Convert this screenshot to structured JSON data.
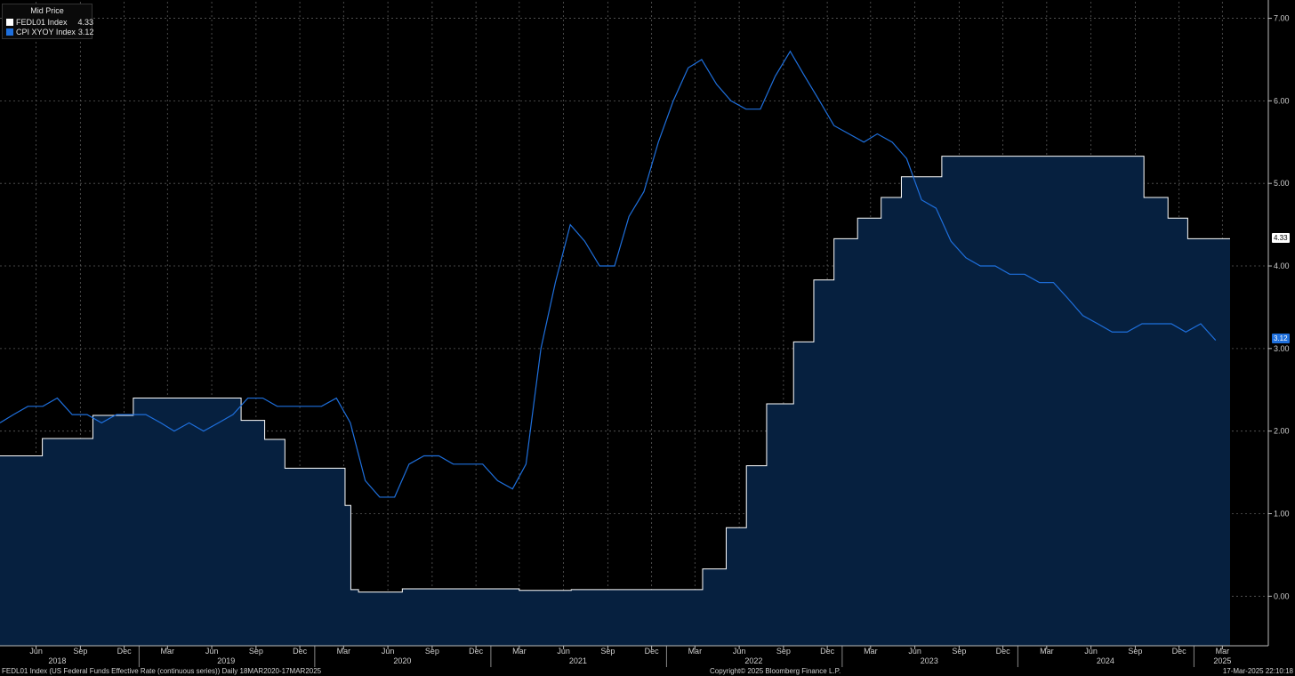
{
  "legend": {
    "title": "Mid Price",
    "items": [
      {
        "name": "FEDL01 Index",
        "value": "4.33",
        "color": "#ffffff"
      },
      {
        "name": "CPI XYOY Index",
        "value": "3.12",
        "color": "#1e6fdc"
      }
    ]
  },
  "value_tags": {
    "fedl01": {
      "text": "4.33",
      "value": 4.33
    },
    "cpi": {
      "text": "3.12",
      "value": 3.12
    }
  },
  "footer": {
    "left": "FEDL01 Index (US Federal Funds Effective Rate (continuous series))  Daily 18MAR2020-17MAR2025",
    "center": "Copyright© 2025 Bloomberg Finance L.P.",
    "right": "17-Mar-2025 22:10:18"
  },
  "chart_data": {
    "type": "line",
    "x_unit": "date",
    "xlim": [
      "2018-03-18",
      "2025-03-17"
    ],
    "ylim": [
      -0.6,
      7.2
    ],
    "y_ticks": [
      "0.00",
      "1.00",
      "2.00",
      "3.00",
      "4.00",
      "5.00",
      "6.00",
      "7.00"
    ],
    "x_month_ticks": [
      {
        "label": "Jun",
        "date": "2018-06-01"
      },
      {
        "label": "Sep",
        "date": "2018-09-01"
      },
      {
        "label": "Dec",
        "date": "2018-12-01"
      },
      {
        "label": "Mar",
        "date": "2019-03-01"
      },
      {
        "label": "Jun",
        "date": "2019-06-01"
      },
      {
        "label": "Sep",
        "date": "2019-09-01"
      },
      {
        "label": "Dec",
        "date": "2019-12-01"
      },
      {
        "label": "Mar",
        "date": "2020-03-01"
      },
      {
        "label": "Jun",
        "date": "2020-06-01"
      },
      {
        "label": "Sep",
        "date": "2020-09-01"
      },
      {
        "label": "Dec",
        "date": "2020-12-01"
      },
      {
        "label": "Mar",
        "date": "2021-03-01"
      },
      {
        "label": "Jun",
        "date": "2021-06-01"
      },
      {
        "label": "Sep",
        "date": "2021-09-01"
      },
      {
        "label": "Dec",
        "date": "2021-12-01"
      },
      {
        "label": "Mar",
        "date": "2022-03-01"
      },
      {
        "label": "Jun",
        "date": "2022-06-01"
      },
      {
        "label": "Sep",
        "date": "2022-09-01"
      },
      {
        "label": "Dec",
        "date": "2022-12-01"
      },
      {
        "label": "Mar",
        "date": "2023-03-01"
      },
      {
        "label": "Jun",
        "date": "2023-06-01"
      },
      {
        "label": "Sep",
        "date": "2023-09-01"
      },
      {
        "label": "Dec",
        "date": "2023-12-01"
      },
      {
        "label": "Mar",
        "date": "2024-03-01"
      },
      {
        "label": "Jun",
        "date": "2024-06-01"
      },
      {
        "label": "Sep",
        "date": "2024-09-01"
      },
      {
        "label": "Dec",
        "date": "2024-12-01"
      },
      {
        "label": "Mar",
        "date": "2025-03-01"
      }
    ],
    "x_year_labels": [
      {
        "label": "2018",
        "date": "2018-07-15"
      },
      {
        "label": "2019",
        "date": "2019-07-01"
      },
      {
        "label": "2020",
        "date": "2020-07-01"
      },
      {
        "label": "2021",
        "date": "2021-07-01"
      },
      {
        "label": "2022",
        "date": "2022-07-01"
      },
      {
        "label": "2023",
        "date": "2023-07-01"
      },
      {
        "label": "2024",
        "date": "2024-07-01"
      },
      {
        "label": "2025",
        "date": "2025-03-01"
      }
    ],
    "grid": true,
    "legend_position": "top-left",
    "series": [
      {
        "name": "FEDL01 Index",
        "style": "step-area",
        "line_color": "#ffffff",
        "fill_color": "#06203f",
        "points": [
          [
            "2018-03-18",
            1.7
          ],
          [
            "2018-06-14",
            1.91
          ],
          [
            "2018-09-27",
            2.19
          ],
          [
            "2018-12-20",
            2.4
          ],
          [
            "2019-08-01",
            2.13
          ],
          [
            "2019-09-19",
            1.9
          ],
          [
            "2019-10-31",
            1.55
          ],
          [
            "2020-03-04",
            1.1
          ],
          [
            "2020-03-16",
            0.08
          ],
          [
            "2020-04-01",
            0.05
          ],
          [
            "2020-07-01",
            0.09
          ],
          [
            "2021-03-01",
            0.07
          ],
          [
            "2021-06-17",
            0.08
          ],
          [
            "2022-03-17",
            0.33
          ],
          [
            "2022-05-05",
            0.83
          ],
          [
            "2022-06-16",
            1.58
          ],
          [
            "2022-07-28",
            2.33
          ],
          [
            "2022-09-22",
            3.08
          ],
          [
            "2022-11-03",
            3.83
          ],
          [
            "2022-12-15",
            4.33
          ],
          [
            "2023-02-02",
            4.58
          ],
          [
            "2023-03-23",
            4.83
          ],
          [
            "2023-05-04",
            5.08
          ],
          [
            "2023-07-27",
            5.33
          ],
          [
            "2024-09-19",
            4.83
          ],
          [
            "2024-11-08",
            4.58
          ],
          [
            "2024-12-19",
            4.33
          ],
          [
            "2025-03-17",
            4.33
          ]
        ]
      },
      {
        "name": "CPI XYOY Index",
        "style": "line",
        "line_color": "#1e6fdc",
        "points": [
          [
            "2018-03-18",
            2.1
          ],
          [
            "2018-04-15",
            2.2
          ],
          [
            "2018-05-15",
            2.3
          ],
          [
            "2018-06-15",
            2.3
          ],
          [
            "2018-07-15",
            2.4
          ],
          [
            "2018-08-15",
            2.2
          ],
          [
            "2018-09-15",
            2.2
          ],
          [
            "2018-10-15",
            2.1
          ],
          [
            "2018-11-15",
            2.2
          ],
          [
            "2018-12-15",
            2.2
          ],
          [
            "2019-01-15",
            2.2
          ],
          [
            "2019-02-15",
            2.1
          ],
          [
            "2019-03-15",
            2.0
          ],
          [
            "2019-04-15",
            2.1
          ],
          [
            "2019-05-15",
            2.0
          ],
          [
            "2019-06-15",
            2.1
          ],
          [
            "2019-07-15",
            2.2
          ],
          [
            "2019-08-15",
            2.4
          ],
          [
            "2019-09-15",
            2.4
          ],
          [
            "2019-10-15",
            2.3
          ],
          [
            "2019-11-15",
            2.3
          ],
          [
            "2019-12-15",
            2.3
          ],
          [
            "2020-01-15",
            2.3
          ],
          [
            "2020-02-15",
            2.4
          ],
          [
            "2020-03-15",
            2.1
          ],
          [
            "2020-04-15",
            1.4
          ],
          [
            "2020-05-15",
            1.2
          ],
          [
            "2020-06-15",
            1.2
          ],
          [
            "2020-07-15",
            1.6
          ],
          [
            "2020-08-15",
            1.7
          ],
          [
            "2020-09-15",
            1.7
          ],
          [
            "2020-10-15",
            1.6
          ],
          [
            "2020-11-15",
            1.6
          ],
          [
            "2020-12-15",
            1.6
          ],
          [
            "2021-01-15",
            1.4
          ],
          [
            "2021-02-15",
            1.3
          ],
          [
            "2021-03-15",
            1.6
          ],
          [
            "2021-04-15",
            3.0
          ],
          [
            "2021-05-15",
            3.8
          ],
          [
            "2021-06-15",
            4.5
          ],
          [
            "2021-07-15",
            4.3
          ],
          [
            "2021-08-15",
            4.0
          ],
          [
            "2021-09-15",
            4.0
          ],
          [
            "2021-10-15",
            4.6
          ],
          [
            "2021-11-15",
            4.9
          ],
          [
            "2021-12-15",
            5.5
          ],
          [
            "2022-01-15",
            6.0
          ],
          [
            "2022-02-15",
            6.4
          ],
          [
            "2022-03-15",
            6.5
          ],
          [
            "2022-04-15",
            6.2
          ],
          [
            "2022-05-15",
            6.0
          ],
          [
            "2022-06-15",
            5.9
          ],
          [
            "2022-07-15",
            5.9
          ],
          [
            "2022-08-15",
            6.3
          ],
          [
            "2022-09-15",
            6.6
          ],
          [
            "2022-10-15",
            6.3
          ],
          [
            "2022-11-15",
            6.0
          ],
          [
            "2022-12-15",
            5.7
          ],
          [
            "2023-01-15",
            5.6
          ],
          [
            "2023-02-15",
            5.5
          ],
          [
            "2023-03-15",
            5.6
          ],
          [
            "2023-04-15",
            5.5
          ],
          [
            "2023-05-15",
            5.3
          ],
          [
            "2023-06-15",
            4.8
          ],
          [
            "2023-07-15",
            4.7
          ],
          [
            "2023-08-15",
            4.3
          ],
          [
            "2023-09-15",
            4.1
          ],
          [
            "2023-10-15",
            4.0
          ],
          [
            "2023-11-15",
            4.0
          ],
          [
            "2023-12-15",
            3.9
          ],
          [
            "2024-01-15",
            3.9
          ],
          [
            "2024-02-15",
            3.8
          ],
          [
            "2024-03-15",
            3.8
          ],
          [
            "2024-04-15",
            3.6
          ],
          [
            "2024-05-15",
            3.4
          ],
          [
            "2024-06-15",
            3.3
          ],
          [
            "2024-07-15",
            3.2
          ],
          [
            "2024-08-15",
            3.2
          ],
          [
            "2024-09-15",
            3.3
          ],
          [
            "2024-10-15",
            3.3
          ],
          [
            "2024-11-15",
            3.3
          ],
          [
            "2024-12-15",
            3.2
          ],
          [
            "2025-01-15",
            3.3
          ],
          [
            "2025-02-15",
            3.1
          ]
        ]
      }
    ]
  }
}
